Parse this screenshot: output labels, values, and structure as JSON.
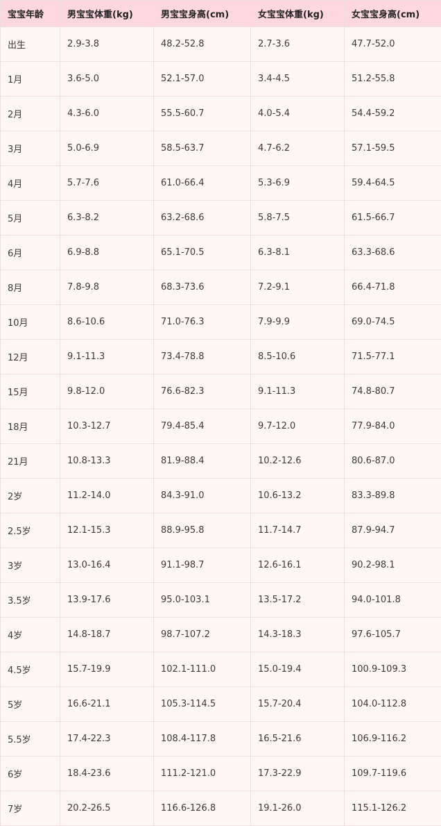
{
  "table": {
    "headers": [
      "宝宝年龄",
      "男宝宝体重(kg)",
      "男宝宝身高(cm)",
      "女宝宝体重(kg)",
      "女宝宝身高(cm)"
    ],
    "rows": [
      [
        "出生",
        "2.9-3.8",
        "48.2-52.8",
        "2.7-3.6",
        "47.7-52.0"
      ],
      [
        "1月",
        "3.6-5.0",
        "52.1-57.0",
        "3.4-4.5",
        "51.2-55.8"
      ],
      [
        "2月",
        "4.3-6.0",
        "55.5-60.7",
        "4.0-5.4",
        "54.4-59.2"
      ],
      [
        "3月",
        "5.0-6.9",
        "58.5-63.7",
        "4.7-6.2",
        "57.1-59.5"
      ],
      [
        "4月",
        "5.7-7.6",
        "61.0-66.4",
        "5.3-6.9",
        "59.4-64.5"
      ],
      [
        "5月",
        "6.3-8.2",
        "63.2-68.6",
        "5.8-7.5",
        "61.5-66.7"
      ],
      [
        "6月",
        "6.9-8.8",
        "65.1-70.5",
        "6.3-8.1",
        "63.3-68.6"
      ],
      [
        "8月",
        "7.8-9.8",
        "68.3-73.6",
        "7.2-9.1",
        "66.4-71.8"
      ],
      [
        "10月",
        "8.6-10.6",
        "71.0-76.3",
        "7.9-9.9",
        "69.0-74.5"
      ],
      [
        "12月",
        "9.1-11.3",
        "73.4-78.8",
        "8.5-10.6",
        "71.5-77.1"
      ],
      [
        "15月",
        "9.8-12.0",
        "76.6-82.3",
        "9.1-11.3",
        "74.8-80.7"
      ],
      [
        "18月",
        "10.3-12.7",
        "79.4-85.4",
        "9.7-12.0",
        "77.9-84.0"
      ],
      [
        "21月",
        "10.8-13.3",
        "81.9-88.4",
        "10.2-12.6",
        "80.6-87.0"
      ],
      [
        "2岁",
        "11.2-14.0",
        "84.3-91.0",
        "10.6-13.2",
        "83.3-89.8"
      ],
      [
        "2.5岁",
        "12.1-15.3",
        "88.9-95.8",
        "11.7-14.7",
        "87.9-94.7"
      ],
      [
        "3岁",
        "13.0-16.4",
        "91.1-98.7",
        "12.6-16.1",
        "90.2-98.1"
      ],
      [
        "3.5岁",
        "13.9-17.6",
        "95.0-103.1",
        "13.5-17.2",
        "94.0-101.8"
      ],
      [
        "4岁",
        "14.8-18.7",
        "98.7-107.2",
        "14.3-18.3",
        "97.6-105.7"
      ],
      [
        "4.5岁",
        "15.7-19.9",
        "102.1-111.0",
        "15.0-19.4",
        "100.9-109.3"
      ],
      [
        "5岁",
        "16.6-21.1",
        "105.3-114.5",
        "15.7-20.4",
        "104.0-112.8"
      ],
      [
        "5.5岁",
        "17.4-22.3",
        "108.4-117.8",
        "16.5-21.6",
        "106.9-116.2"
      ],
      [
        "6岁",
        "18.4-23.6",
        "111.2-121.0",
        "17.3-22.9",
        "109.7-119.6"
      ],
      [
        "7岁",
        "20.2-26.5",
        "116.6-126.8",
        "19.1-26.0",
        "115.1-126.2"
      ]
    ]
  },
  "colors": {
    "header_bg": "#ffd7e0",
    "row_bg": "#fff6f6",
    "grid_line": "#f0dede"
  }
}
